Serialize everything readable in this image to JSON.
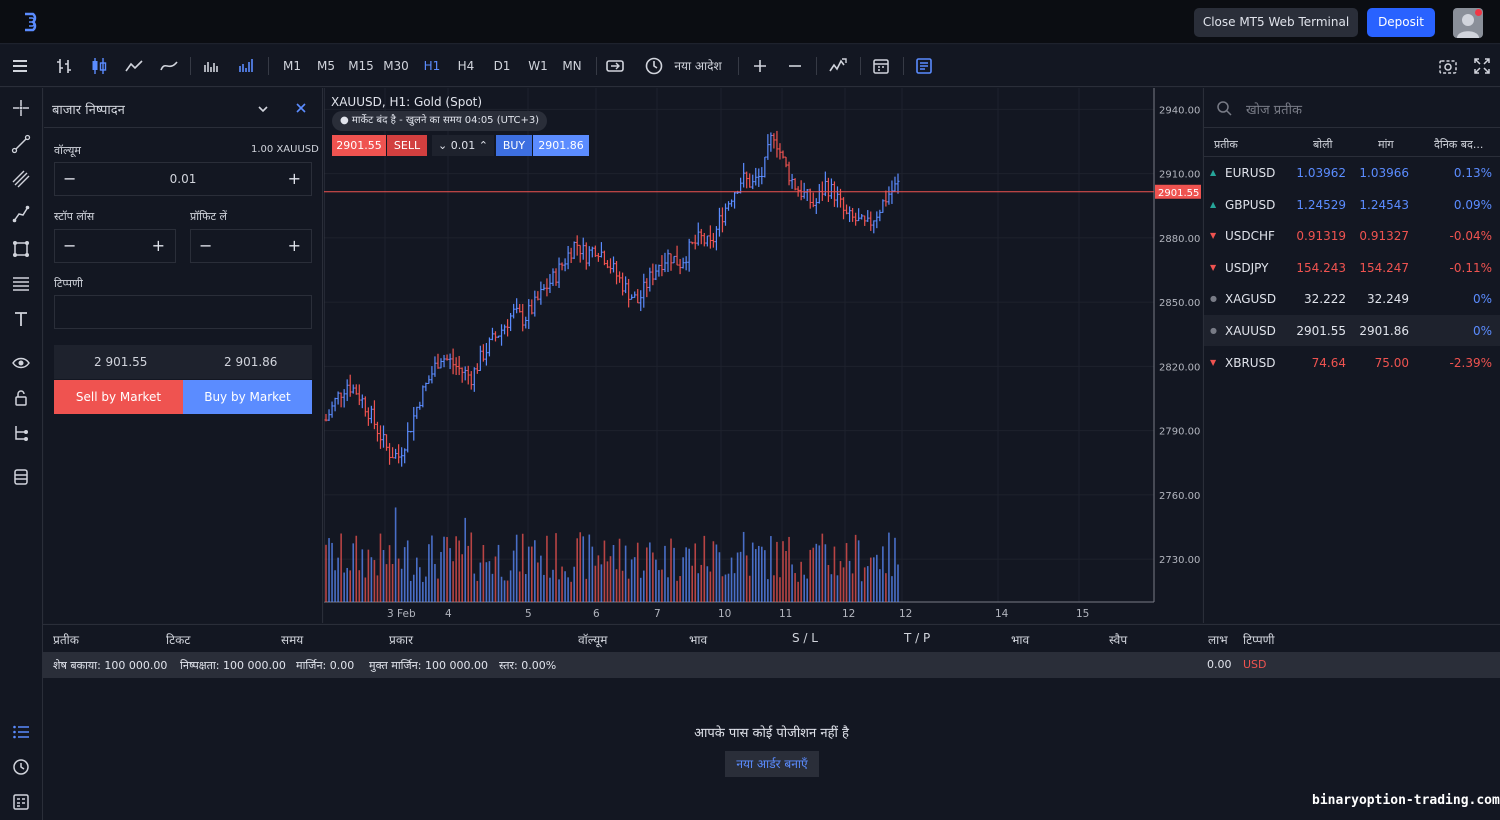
{
  "topbar": {
    "close_terminal": "Close MT5 Web Terminal",
    "deposit": "Deposit"
  },
  "toolbar": {
    "timeframes": [
      "M1",
      "M5",
      "M15",
      "M30",
      "H1",
      "H4",
      "D1",
      "W1",
      "MN"
    ],
    "active_timeframe": "H1",
    "new_order": "नया आदेश"
  },
  "order_panel": {
    "title": "बाजार निष्पादन",
    "volume_label": "वॉल्यूम",
    "volume_unit": "1.00 XAUUSD",
    "volume_value": "0.01",
    "stoploss_label": "स्टॉप लॉस",
    "takeprofit_label": "प्रॉफिट लें",
    "comment_label": "टिप्पणी",
    "bid": "2 901.55",
    "ask": "2 901.86",
    "sell_button": "Sell by Market",
    "buy_button": "Buy by Market"
  },
  "chart": {
    "title": "XAUUSD, H1: Gold (Spot)",
    "market_status": "मार्केट बंद है - खुलने का समय 04:05 (UTC+3)",
    "sell_price": "2901.55",
    "sell_label": "SELL",
    "qty": "0.01",
    "buy_label": "BUY",
    "buy_price": "2901.86",
    "current_price_label": "2901.55"
  },
  "chart_data": {
    "type": "bar",
    "ylim": [
      2710,
      2950
    ],
    "current_price": 2901.55,
    "y_ticks": [
      "2940.00",
      "2910.00",
      "2880.00",
      "2850.00",
      "2820.00",
      "2790.00",
      "2760.00",
      "2730.00"
    ],
    "y_tick_values": [
      2940,
      2910,
      2880,
      2850,
      2820,
      2790,
      2760,
      2730
    ],
    "x_ticks": [
      "3 Feb",
      "4",
      "5",
      "6",
      "7",
      "10",
      "11",
      "12",
      "12",
      "14",
      "15"
    ],
    "price_path": [
      2795,
      2805,
      2812,
      2808,
      2800,
      2790,
      2780,
      2778,
      2790,
      2805,
      2815,
      2825,
      2822,
      2818,
      2815,
      2825,
      2832,
      2838,
      2845,
      2842,
      2848,
      2856,
      2862,
      2870,
      2878,
      2872,
      2876,
      2870,
      2862,
      2855,
      2850,
      2860,
      2868,
      2872,
      2868,
      2875,
      2880,
      2876,
      2890,
      2900,
      2908,
      2905,
      2910,
      2930,
      2915,
      2905,
      2900,
      2895,
      2905,
      2900,
      2890,
      2888,
      2885,
      2892,
      2900,
      2905
    ]
  },
  "watchlist": {
    "search_placeholder": "खोज प्रतीक",
    "columns": [
      "प्रतीक",
      "बोली",
      "मांग",
      "दैनिक बद..."
    ],
    "rows": [
      {
        "symbol": "EURUSD",
        "bid": "1.03962",
        "ask": "1.03966",
        "change": "0.13%",
        "dir": "up"
      },
      {
        "symbol": "GBPUSD",
        "bid": "1.24529",
        "ask": "1.24543",
        "change": "0.09%",
        "dir": "up"
      },
      {
        "symbol": "USDCHF",
        "bid": "0.91319",
        "ask": "0.91327",
        "change": "-0.04%",
        "dir": "down"
      },
      {
        "symbol": "USDJPY",
        "bid": "154.243",
        "ask": "154.247",
        "change": "-0.11%",
        "dir": "down"
      },
      {
        "symbol": "XAGUSD",
        "bid": "32.222",
        "ask": "32.249",
        "change": "0%",
        "dir": "flat"
      },
      {
        "symbol": "XAUUSD",
        "bid": "2901.55",
        "ask": "2901.86",
        "change": "0%",
        "dir": "flat"
      },
      {
        "symbol": "XBRUSD",
        "bid": "74.64",
        "ask": "75.00",
        "change": "-2.39%",
        "dir": "down"
      }
    ],
    "colors": {
      "up": "#26a69a",
      "down": "#ef5350",
      "flat": "#787b86",
      "blue": "#5b8cff",
      "red": "#ef5350"
    }
  },
  "bottom": {
    "columns": [
      "प्रतीक",
      "टिकट",
      "समय",
      "प्रकार",
      "वॉल्यूम",
      "भाव",
      "S / L",
      "T / P",
      "भाव",
      "स्वैप",
      "लाभ",
      "टिप्पणी"
    ],
    "balance": "शेष बकाया: 100 000.00",
    "equity": "निष्पक्षता: 100 000.00",
    "margin": "मार्जिन: 0.00",
    "free_margin": "मुक्त मार्जिन: 100 000.00",
    "level": "स्तर: 0.00%",
    "profit": "0.00",
    "currency": "USD",
    "no_positions": "आपके पास कोई पोजीशन नहीं है",
    "new_order": "नया आर्डर बनाएँ"
  },
  "watermark": "binaryoption-trading.com"
}
